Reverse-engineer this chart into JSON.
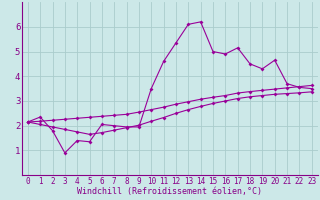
{
  "background_color": "#cce8e8",
  "grid_color": "#aacccc",
  "line_color": "#990099",
  "xlim": [
    -0.5,
    23.5
  ],
  "ylim": [
    0,
    7
  ],
  "xtick_vals": [
    0,
    1,
    2,
    3,
    4,
    5,
    6,
    7,
    8,
    9,
    10,
    11,
    12,
    13,
    14,
    15,
    16,
    17,
    18,
    19,
    20,
    21,
    22,
    23
  ],
  "xtick_labels": [
    "0",
    "1",
    "2",
    "3",
    "4",
    "5",
    "6",
    "7",
    "8",
    "9",
    "10",
    "11",
    "12",
    "13",
    "14",
    "15",
    "16",
    "17",
    "18",
    "19",
    "20",
    "21",
    "22",
    "23"
  ],
  "ytick_vals": [
    1,
    2,
    3,
    4,
    5,
    6
  ],
  "ytick_labels": [
    "1",
    "2",
    "3",
    "4",
    "5",
    "6"
  ],
  "xlabel": "Windchill (Refroidissement éolien,°C)",
  "line1_x": [
    0,
    1,
    2,
    3,
    4,
    5,
    6,
    7,
    8,
    9,
    10,
    11,
    12,
    13,
    14,
    15,
    16,
    17,
    18,
    19,
    20,
    21,
    22,
    23
  ],
  "line1_y": [
    2.15,
    2.35,
    1.8,
    0.9,
    1.4,
    1.35,
    2.05,
    2.0,
    1.95,
    1.95,
    3.5,
    4.6,
    5.35,
    6.1,
    6.2,
    5.0,
    4.9,
    5.15,
    4.5,
    4.3,
    4.65,
    3.7,
    3.55,
    3.5
  ],
  "line2_x": [
    0,
    1,
    2,
    3,
    4,
    5,
    6,
    7,
    8,
    9,
    10,
    11,
    12,
    13,
    14,
    15,
    16,
    17,
    18,
    19,
    20,
    21,
    22,
    23
  ],
  "line2_y": [
    2.15,
    2.18,
    2.22,
    2.26,
    2.3,
    2.34,
    2.38,
    2.42,
    2.46,
    2.55,
    2.65,
    2.75,
    2.87,
    2.97,
    3.07,
    3.15,
    3.22,
    3.32,
    3.38,
    3.43,
    3.48,
    3.53,
    3.58,
    3.63
  ],
  "line3_x": [
    0,
    1,
    2,
    3,
    4,
    5,
    6,
    7,
    8,
    9,
    10,
    11,
    12,
    13,
    14,
    15,
    16,
    17,
    18,
    19,
    20,
    21,
    22,
    23
  ],
  "line3_y": [
    2.15,
    2.05,
    1.95,
    1.85,
    1.75,
    1.65,
    1.72,
    1.82,
    1.92,
    2.02,
    2.18,
    2.33,
    2.5,
    2.65,
    2.78,
    2.9,
    3.0,
    3.1,
    3.17,
    3.22,
    3.27,
    3.3,
    3.33,
    3.37
  ],
  "marker": "D",
  "markersize": 2.0,
  "linewidth": 0.8,
  "font_color": "#880088",
  "font_name": "monospace",
  "xlabel_fontsize": 6.0,
  "tick_fontsize": 5.5
}
